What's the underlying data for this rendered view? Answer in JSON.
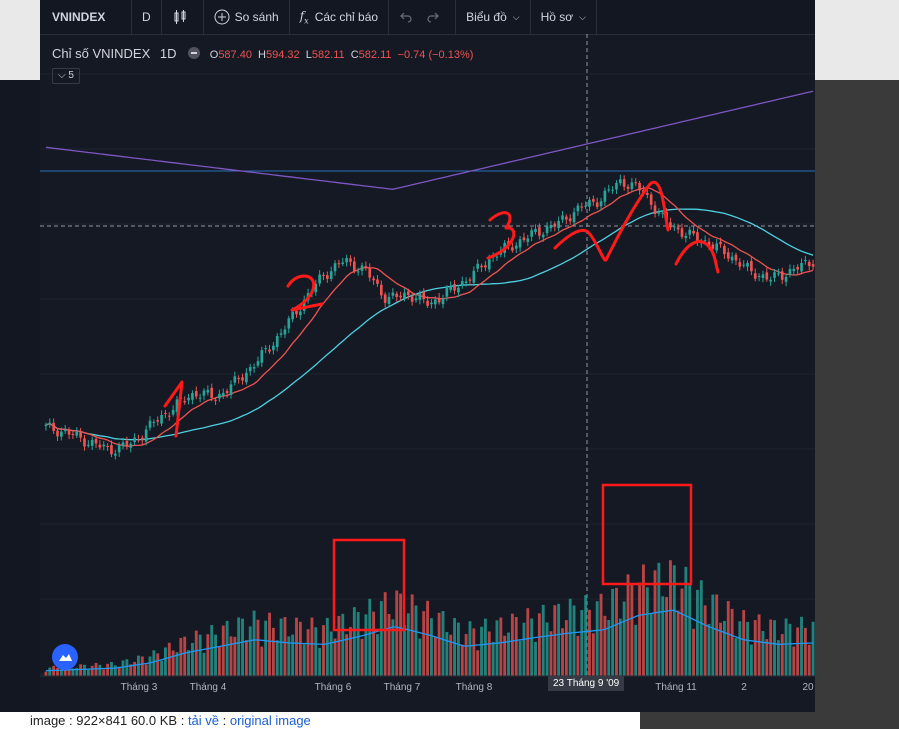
{
  "toolbar": {
    "symbol": "VNINDEX",
    "interval": "D",
    "compare": "So sánh",
    "indicators": "Các chỉ báo",
    "chart_menu": "Biểu đồ",
    "profile": "Hồ sơ"
  },
  "legend": {
    "title": "Chỉ số VNINDEX",
    "interval": "1D",
    "o_label": "O",
    "o": "587.40",
    "h_label": "H",
    "h": "594.32",
    "l_label": "L",
    "l": "582.11",
    "c_label": "C",
    "c": "582.11",
    "change": "−0.74 (−0.13%)",
    "collapse_count": "5"
  },
  "crosshair_label": "23 Tháng 9 '09",
  "bottom_text_prefix": "image : 922×841 60.0 KB :",
  "bottom_link1": "tải về",
  "bottom_link2": "original image",
  "annotations": [
    "1",
    "2",
    "3"
  ],
  "colors": {
    "up": "#26a69a",
    "down": "#ef5350",
    "ma_red": "#ef5350",
    "ma_teal": "#4dd0e1",
    "ma_purple": "#7e57c2",
    "ink": "#ff1a1a"
  },
  "chart_data": {
    "type": "candlestick",
    "title": "Chỉ số VNINDEX 1D",
    "x_ticks": [
      "Tháng 3",
      "Tháng 4",
      "Tháng 6",
      "Tháng 7",
      "Tháng 8",
      "Tháng 11",
      "2",
      "20"
    ],
    "close_series": [
      270,
      262,
      248,
      236,
      245,
      275,
      300,
      322,
      315,
      340,
      372,
      410,
      455,
      498,
      520,
      505,
      462,
      470,
      455,
      475,
      498,
      528,
      545,
      562,
      575,
      598,
      612,
      640,
      625,
      580,
      560,
      548,
      530,
      505,
      492,
      505,
      520
    ],
    "crosshair_price": 582.11,
    "volume_levels": [
      0.08,
      0.1,
      0.12,
      0.2,
      0.35,
      0.45,
      0.55,
      0.5,
      0.48,
      0.6,
      0.75,
      0.62,
      0.45,
      0.5,
      0.58,
      0.65,
      0.7,
      0.92,
      1.0,
      0.75,
      0.55,
      0.48,
      0.5
    ]
  }
}
